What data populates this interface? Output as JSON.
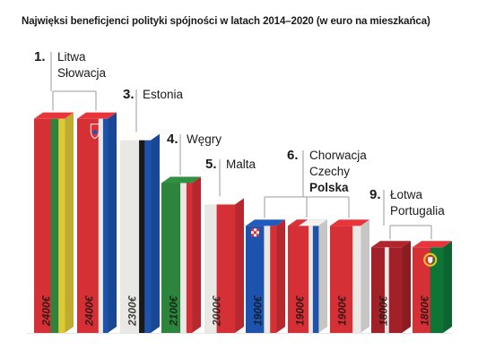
{
  "title": "Najwięksi beneficjenci polityki spójności w latach 2014–2020 (w euro na mieszkańca)",
  "colors": {
    "red": "#dd3238",
    "red_dark": "#a9232a",
    "white": "#f4f2ef",
    "white_shade": "#dcd8d3",
    "green_lt": "#2f8a3f",
    "green_pt": "#0f7a3a",
    "yellow": "#e8d23a",
    "blue": "#1f57b5",
    "black": "#1b1b1b",
    "line": "#9a9a9a"
  },
  "chart_data": {
    "type": "bar",
    "title": "Najwięksi beneficjenci polityki spójności w latach 2014–2020 (w euro na mieszkańca)",
    "unit": "€",
    "categories": [
      "Litwa",
      "Słowacja",
      "Estonia",
      "Węgry",
      "Malta",
      "Chorwacja",
      "Czechy",
      "Polska",
      "Łotwa",
      "Portugalia"
    ],
    "values": [
      2400,
      2400,
      2300,
      2100,
      2000,
      1900,
      1900,
      1900,
      1800,
      1800
    ],
    "value_labels": [
      "2400€",
      "2400€",
      "2300€",
      "2100€",
      "2000€",
      "1900€",
      "1900€",
      "1900€",
      "1800€",
      "1800€"
    ],
    "flags": [
      "lithuania",
      "slovakia",
      "estonia",
      "hungary",
      "malta",
      "croatia",
      "czechia",
      "poland",
      "latvia",
      "portugal"
    ],
    "groups": [
      {
        "rank": "1.",
        "labels": [
          "Litwa",
          "Słowacja"
        ],
        "bars": [
          0,
          1
        ],
        "bold": []
      },
      {
        "rank": "3.",
        "labels": [
          "Estonia"
        ],
        "bars": [
          2
        ],
        "bold": []
      },
      {
        "rank": "4.",
        "labels": [
          "Węgry"
        ],
        "bars": [
          3
        ],
        "bold": []
      },
      {
        "rank": "5.",
        "labels": [
          "Malta"
        ],
        "bars": [
          4
        ],
        "bold": []
      },
      {
        "rank": "6.",
        "labels": [
          "Chorwacja",
          "Czechy",
          "Polska"
        ],
        "bars": [
          5,
          6,
          7
        ],
        "bold": [
          2
        ]
      },
      {
        "rank": "9.",
        "labels": [
          "Łotwa",
          "Portugalia"
        ],
        "bars": [
          8,
          9
        ],
        "bold": []
      }
    ]
  }
}
